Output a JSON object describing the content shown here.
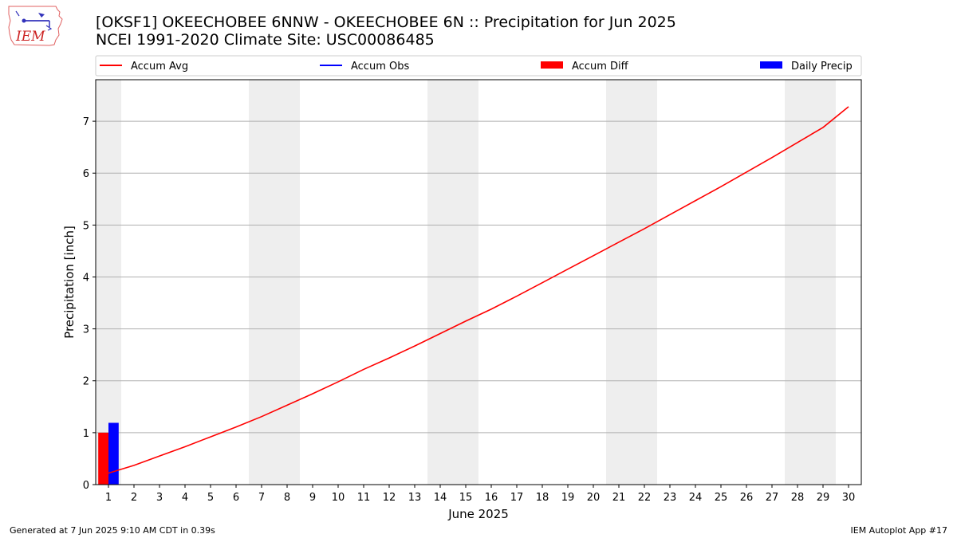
{
  "header": {
    "title_line1": "[OKSF1] OKEECHOBEE 6NNW - OKEECHOBEE 6N :: Precipitation for Jun 2025",
    "title_line2": "NCEI 1991-2020 Climate Site: USC00086485",
    "logo_text": "IEM"
  },
  "footer": {
    "generated": "Generated at 7 Jun 2025 9:10 AM CDT in 0.39s",
    "app": "IEM Autoplot App #17"
  },
  "colors": {
    "accum_avg": "#ff0000",
    "accum_obs": "#0000ff",
    "accum_diff": "#ff0000",
    "daily_precip": "#0000ff",
    "weekend_shade": "#eeeeee",
    "grid": "#b0b0b0"
  },
  "chart_data": {
    "type": "line",
    "xlabel": "June 2025",
    "ylabel": "Precipitation [inch]",
    "xlim": [
      0.5,
      30.5
    ],
    "ylim": [
      0,
      7.8
    ],
    "x_ticks": [
      1,
      2,
      3,
      4,
      5,
      6,
      7,
      8,
      9,
      10,
      11,
      12,
      13,
      14,
      15,
      16,
      17,
      18,
      19,
      20,
      21,
      22,
      23,
      24,
      25,
      26,
      27,
      28,
      29,
      30
    ],
    "x_tick_labels": [
      "1",
      "2",
      "3",
      "4",
      "5",
      "6",
      "7",
      "8",
      "9",
      "10",
      "11",
      "12",
      "13",
      "14",
      "15",
      "16",
      "17",
      "18",
      "19",
      "20",
      "21",
      "22",
      "23",
      "24",
      "25",
      "26",
      "27",
      "28",
      "29",
      "30"
    ],
    "y_ticks": [
      0,
      1,
      2,
      3,
      4,
      5,
      6,
      7
    ],
    "y_tick_labels": [
      "0",
      "1",
      "2",
      "3",
      "4",
      "5",
      "6",
      "7"
    ],
    "grid": "y-major",
    "legend_placement": "top",
    "legend": [
      "Accum Avg",
      "Accum Obs",
      "Accum Diff",
      "Daily Precip"
    ],
    "weekend_days": [
      1,
      7,
      8,
      14,
      15,
      21,
      22,
      28,
      29
    ],
    "series": [
      {
        "name": "Accum Avg",
        "kind": "line",
        "x": [
          1,
          2,
          3,
          4,
          5,
          6,
          7,
          8,
          9,
          10,
          11,
          12,
          13,
          14,
          15,
          16,
          17,
          18,
          19,
          20,
          21,
          22,
          23,
          24,
          25,
          26,
          27,
          28,
          29,
          30
        ],
        "values": [
          0.22,
          0.37,
          0.55,
          0.73,
          0.92,
          1.11,
          1.31,
          1.53,
          1.75,
          1.98,
          2.22,
          2.44,
          2.67,
          2.91,
          3.15,
          3.38,
          3.63,
          3.89,
          4.15,
          4.41,
          4.67,
          4.93,
          5.2,
          5.47,
          5.74,
          6.02,
          6.3,
          6.59,
          6.88,
          7.28
        ]
      },
      {
        "name": "Accum Obs",
        "kind": "line",
        "x": [],
        "values": []
      },
      {
        "name": "Accum Diff",
        "kind": "bar",
        "x": [
          1
        ],
        "values": [
          1.0
        ]
      },
      {
        "name": "Daily Precip",
        "kind": "bar",
        "x": [
          1
        ],
        "values": [
          1.19
        ]
      }
    ]
  }
}
